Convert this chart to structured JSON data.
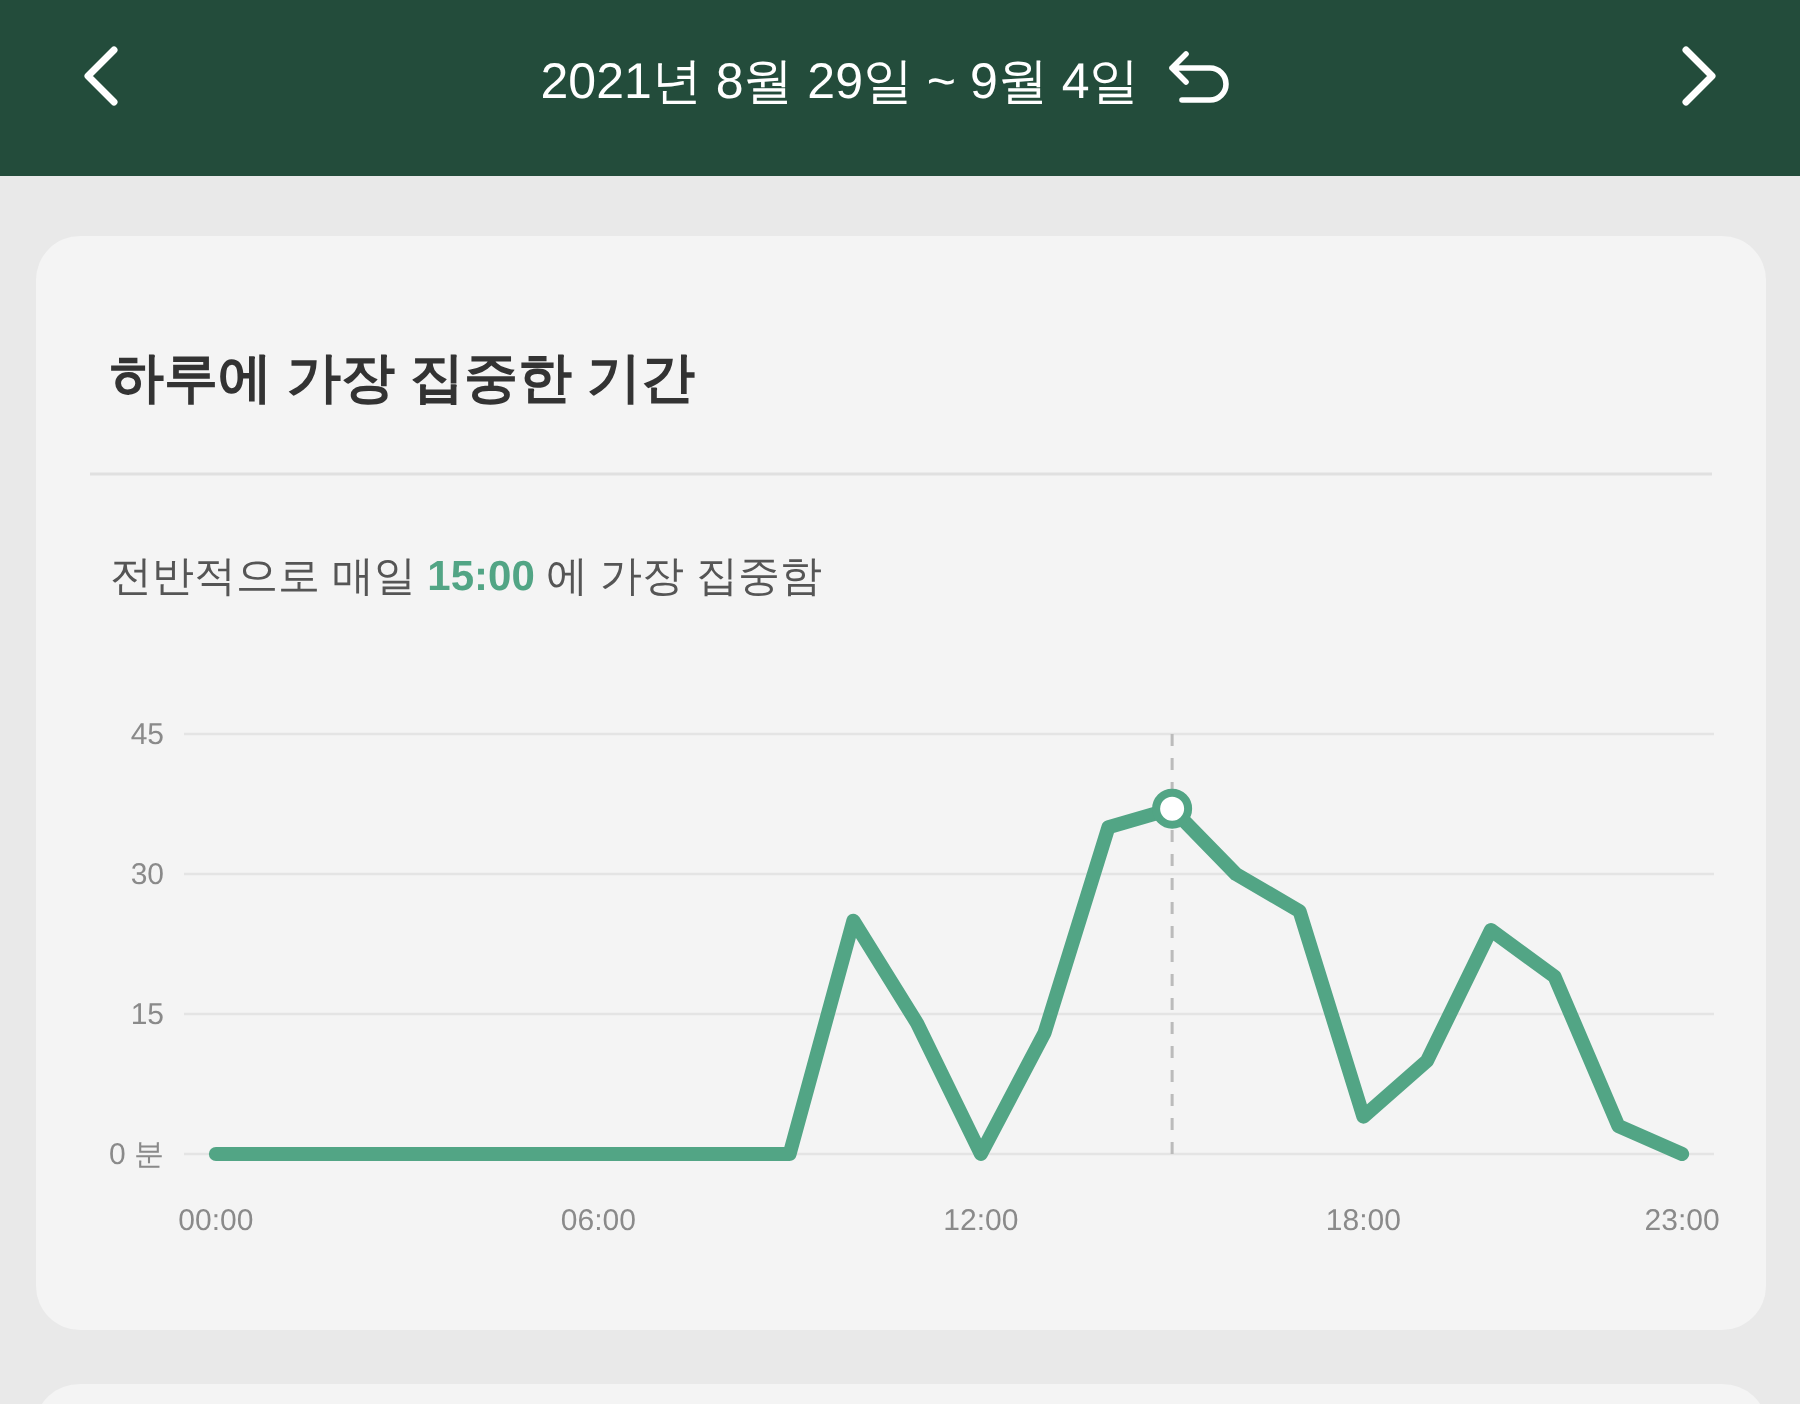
{
  "chart_data": {
    "type": "line",
    "title": "하루에 가장 집중한 기간",
    "subtitle": "전반적으로 매일 15:00 에 가장 집중함",
    "annotations": [
      "2021년 8월 29일 ~ 9월 4일"
    ],
    "x": [
      0,
      1,
      2,
      3,
      4,
      5,
      6,
      7,
      8,
      9,
      10,
      11,
      12,
      13,
      14,
      15,
      16,
      17,
      18,
      19,
      20,
      21,
      22,
      23
    ],
    "series": [
      {
        "color": "#52a585",
        "values": [
          0,
          0,
          0,
          0,
          0,
          0,
          0,
          0,
          0,
          0,
          25,
          14,
          0,
          13,
          35,
          37,
          30,
          26,
          4,
          10,
          24,
          19,
          3,
          0
        ]
      },
      {
        "type": "scatter",
        "x": [
          15
        ],
        "color": "#52a585",
        "marker": "circle",
        "values": [
          37
        ]
      }
    ],
    "xlim": [
      -0.5,
      23.5
    ],
    "xticks": [
      {
        "value": 0,
        "label": "00:00"
      },
      {
        "value": 6,
        "label": "06:00"
      },
      {
        "value": 12,
        "label": "12:00"
      },
      {
        "value": 18,
        "label": "18:00"
      },
      {
        "value": 23,
        "label": "23:00"
      }
    ],
    "ylim": [
      0,
      45
    ],
    "yticks": [
      {
        "value": 0,
        "label": "0 분"
      },
      15,
      30,
      45
    ],
    "grid": "y",
    "line_style": "solid",
    "ref_lines": [
      {
        "axis": "x",
        "value": 15,
        "color": "#bbbbbb",
        "line_style": "dashed"
      }
    ]
  }
}
